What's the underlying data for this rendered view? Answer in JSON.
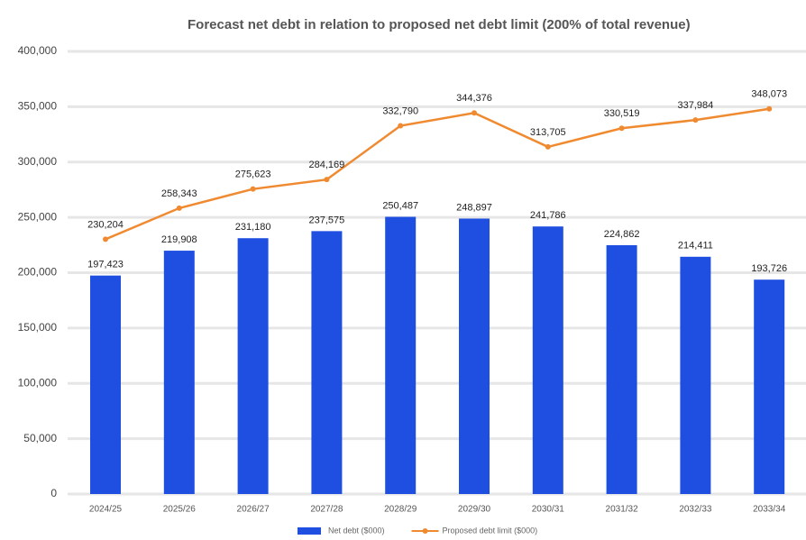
{
  "chart_data": {
    "type": "bar_line",
    "title": "Forecast net debt in relation to proposed net debt limit (200% of total revenue)",
    "categories": [
      "2024/25",
      "2025/26",
      "2026/27",
      "2027/28",
      "2028/29",
      "2029/30",
      "2030/31",
      "2031/32",
      "2032/33",
      "2033/34"
    ],
    "series": [
      {
        "name": "Net debt ($000)",
        "type": "bar",
        "color": "#1f4fe0",
        "values": [
          197423,
          219908,
          231180,
          237575,
          250487,
          248897,
          241786,
          224862,
          214411,
          193726
        ],
        "value_labels": [
          "197,423",
          "219,908",
          "231,180",
          "237,575",
          "250,487",
          "248,897",
          "241,786",
          "224,862",
          "214,411",
          "193,726"
        ]
      },
      {
        "name": "Proposed debt limit ($000)",
        "type": "line",
        "color": "#f08a30",
        "values": [
          230204,
          258343,
          275623,
          284169,
          332790,
          344376,
          313705,
          330519,
          337984,
          348073
        ],
        "value_labels": [
          "230,204",
          "258,343",
          "275,623",
          "284,169",
          "332,790",
          "344,376",
          "313,705",
          "330,519",
          "337,984",
          "348,073"
        ]
      }
    ],
    "ylim": [
      0,
      400000
    ],
    "yticks": [
      0,
      {
        "value": 50000,
        "label": "50,000"
      },
      {
        "value": 100000,
        "label": "100,000"
      },
      {
        "value": 150000,
        "label": "150,000"
      },
      {
        "value": 200000,
        "label": "200,000"
      },
      {
        "value": 250000,
        "label": "250,000"
      },
      {
        "value": 300000,
        "label": "300,000"
      },
      {
        "value": 350000,
        "label": "350,000"
      },
      {
        "value": 400000,
        "label": "400,000"
      }
    ],
    "grid": true,
    "legend": "bottom"
  }
}
